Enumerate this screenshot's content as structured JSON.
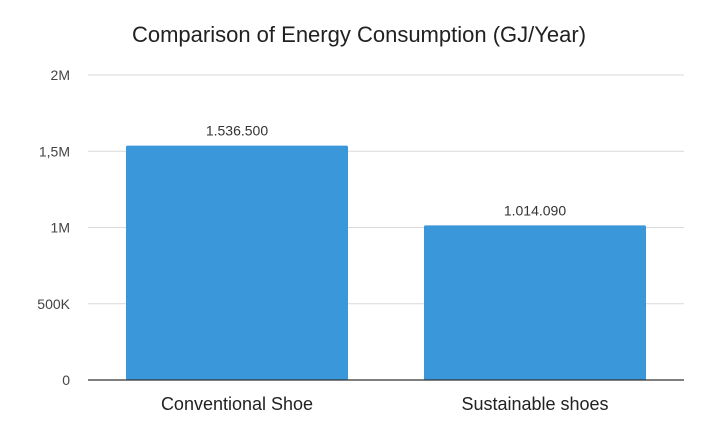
{
  "chart_data": {
    "type": "bar",
    "title": "Comparison of Energy Consumption (GJ/Year)",
    "xlabel": "",
    "ylabel": "",
    "categories": [
      "Conventional Shoe",
      "Sustainable shoes"
    ],
    "values": [
      1536500,
      1014090
    ],
    "data_labels": [
      "1.536.500",
      "1.014.090"
    ],
    "ylim": [
      0,
      2000000
    ],
    "yticks": [
      0,
      500000,
      1000000,
      1500000,
      2000000
    ],
    "ytick_labels": [
      "0",
      "500K",
      "1M",
      "1,5M",
      "2M"
    ],
    "grid": true,
    "legend": "none",
    "colors": {
      "bar": "#3a97da"
    }
  }
}
